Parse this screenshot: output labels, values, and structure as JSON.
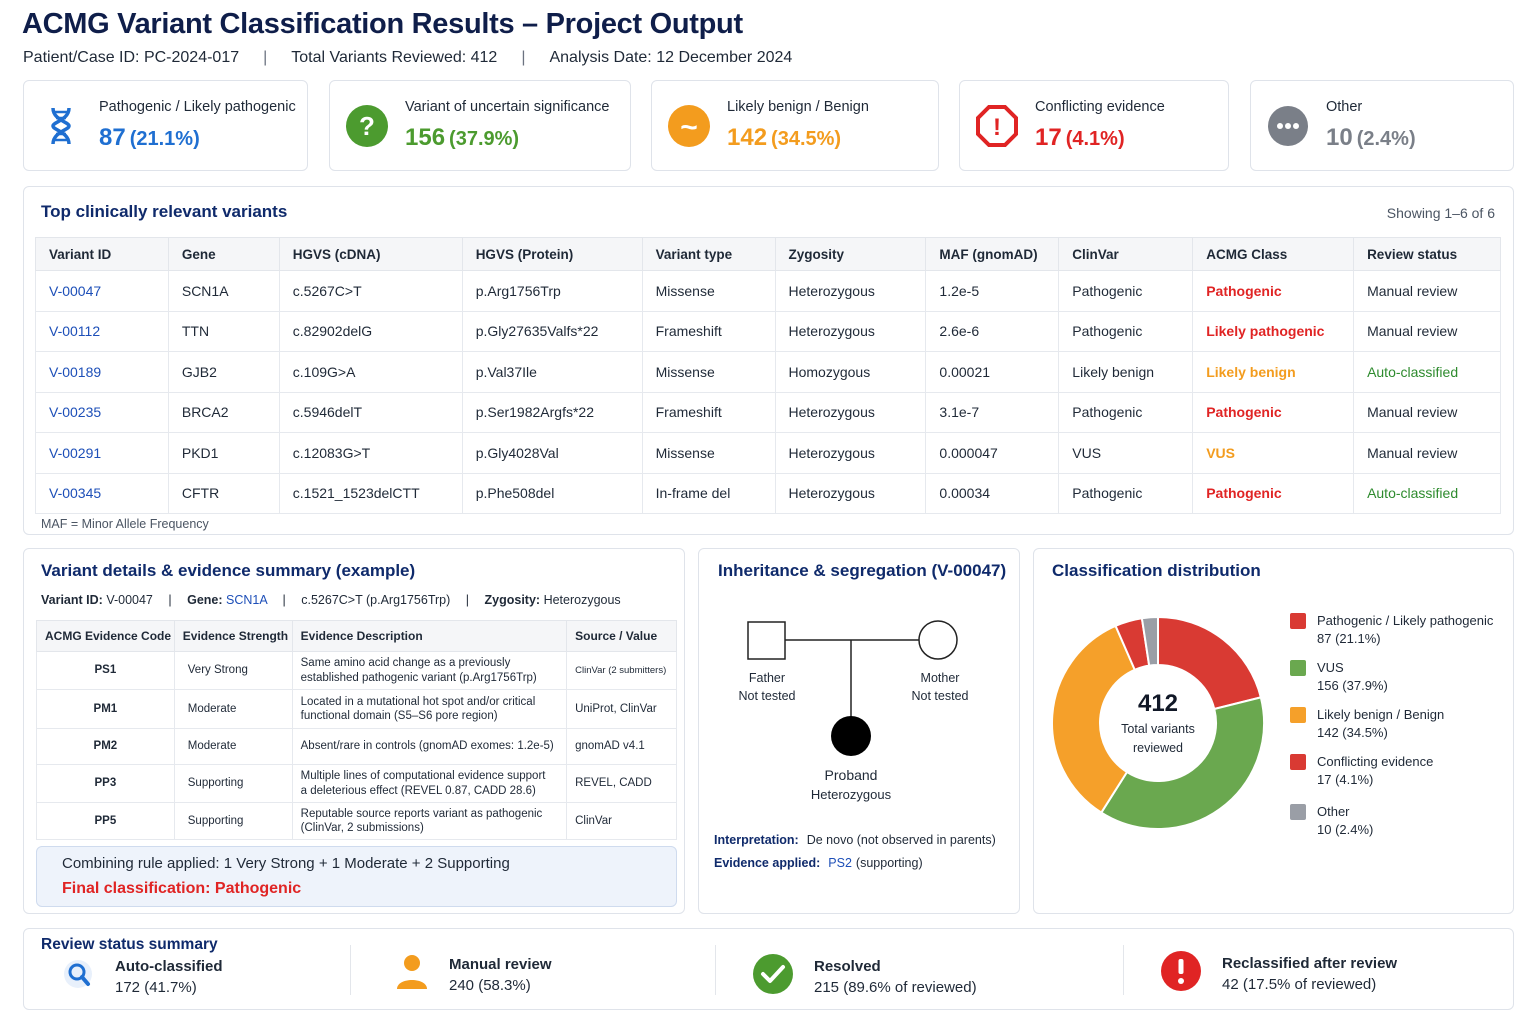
{
  "header": {
    "title": "ACMG Variant Classification Results – Project Output",
    "case_id": "Patient/Case ID: PC-2024-017",
    "total": "Total Variants Reviewed: 412",
    "date": "Analysis Date: 12 December 2024",
    "separator": "|"
  },
  "summary_cards": [
    {
      "label": "Pathogenic / Likely pathogenic",
      "count": "87",
      "pct": "(21.1%)",
      "color": "#1f6fd1",
      "icon": "dna-icon"
    },
    {
      "label": "Variant of uncertain significance",
      "count": "156",
      "pct": "(37.9%)",
      "color": "#4c9b2f",
      "icon": "question-icon",
      "glyph": "?"
    },
    {
      "label": "Likely benign / Benign",
      "count": "142",
      "pct": "(34.5%)",
      "color": "#f39c1e",
      "icon": "tilde-icon",
      "glyph": "~"
    },
    {
      "label": "Conflicting evidence",
      "count": "17",
      "pct": "(4.1%)",
      "color": "#e02424",
      "icon": "alert-octagon-icon",
      "glyph": "!"
    },
    {
      "label": "Other",
      "count": "10",
      "pct": "(2.4%)",
      "color": "#7a7f88",
      "icon": "more-icon",
      "glyph": "•••"
    }
  ],
  "top_variants": {
    "title": "Top clinically relevant variants",
    "showing": "Showing 1–6 of 6",
    "footnote": "MAF = Minor Allele Frequency",
    "columns": [
      "Variant ID",
      "Gene",
      "HGVS (cDNA)",
      "HGVS (Protein)",
      "Variant type",
      "Zygosity",
      "MAF (gnomAD)",
      "ClinVar",
      "ACMG Class",
      "Review status"
    ],
    "rows": [
      {
        "id": "V-00047",
        "gene": "SCN1A",
        "cdna": "c.5267C>T",
        "protein": "p.Arg1756Trp",
        "type": "Missense",
        "zyg": "Heterozygous",
        "maf": "1.2e-5",
        "clinvar": "Pathogenic",
        "acmg": "Pathogenic",
        "acmg_color": "#e02424",
        "status": "Manual review",
        "status_color": "#1f2937"
      },
      {
        "id": "V-00112",
        "gene": "TTN",
        "cdna": "c.82902delG",
        "protein": "p.Gly27635Valfs*22",
        "type": "Frameshift",
        "zyg": "Heterozygous",
        "maf": "2.6e-6",
        "clinvar": "Pathogenic",
        "acmg": "Likely pathogenic",
        "acmg_color": "#e02424",
        "status": "Manual review",
        "status_color": "#1f2937"
      },
      {
        "id": "V-00189",
        "gene": "GJB2",
        "cdna": "c.109G>A",
        "protein": "p.Val37Ile",
        "type": "Missense",
        "zyg": "Homozygous",
        "maf": "0.00021",
        "clinvar": "Likely benign",
        "acmg": "Likely benign",
        "acmg_color": "#f39c1e",
        "status": "Auto-classified",
        "status_color": "#2e8b2e"
      },
      {
        "id": "V-00235",
        "gene": "BRCA2",
        "cdna": "c.5946delT",
        "protein": "p.Ser1982Argfs*22",
        "type": "Frameshift",
        "zyg": "Heterozygous",
        "maf": "3.1e-7",
        "clinvar": "Pathogenic",
        "acmg": "Pathogenic",
        "acmg_color": "#e02424",
        "status": "Manual review",
        "status_color": "#1f2937"
      },
      {
        "id": "V-00291",
        "gene": "PKD1",
        "cdna": "c.12083G>T",
        "protein": "p.Gly4028Val",
        "type": "Missense",
        "zyg": "Heterozygous",
        "maf": "0.000047",
        "clinvar": "VUS",
        "acmg": "VUS",
        "acmg_color": "#f39c1e",
        "status": "Manual review",
        "status_color": "#1f2937"
      },
      {
        "id": "V-00345",
        "gene": "CFTR",
        "cdna": "c.1521_1523delCTT",
        "protein": "p.Phe508del",
        "type": "In-frame del",
        "zyg": "Heterozygous",
        "maf": "0.00034",
        "clinvar": "Pathogenic",
        "acmg": "Pathogenic",
        "acmg_color": "#e02424",
        "status": "Auto-classified",
        "status_color": "#2e8b2e"
      }
    ]
  },
  "evidence": {
    "title": "Variant details & evidence summary (example)",
    "variant_label": "Variant ID:",
    "variant_value": "V-00047",
    "gene_label": "Gene:",
    "gene_value": "SCN1A",
    "hgvs": "c.5267C>T (p.Arg1756Trp)",
    "zyg_label": "Zygosity:",
    "zyg_value": "Heterozygous",
    "separator": "|",
    "columns": [
      "ACMG Evidence Code",
      "Evidence Strength",
      "Evidence Description",
      "Source / Value"
    ],
    "rows": [
      {
        "code": "PS1",
        "strength": "Very Strong",
        "desc1": "Same amino acid change as a previously",
        "desc2": "established pathogenic variant (p.Arg1756Trp)",
        "source": "ClinVar (2 submitters)"
      },
      {
        "code": "PM1",
        "strength": "Moderate",
        "desc1": "Located in a mutational hot spot and/or critical",
        "desc2": "functional domain (S5–S6 pore region)",
        "source": "UniProt, ClinVar"
      },
      {
        "code": "PM2",
        "strength": "Moderate",
        "desc1": "Absent/rare in controls (gnomAD exomes: 1.2e-5)",
        "desc2": "",
        "source": "gnomAD v4.1"
      },
      {
        "code": "PP3",
        "strength": "Supporting",
        "desc1": "Multiple lines of computational evidence support",
        "desc2": "a deleterious effect (REVEL 0.87, CADD 28.6)",
        "source": "REVEL, CADD"
      },
      {
        "code": "PP5",
        "strength": "Supporting",
        "desc1": "Reputable source reports variant as pathogenic",
        "desc2": "(ClinVar, 2 submissions)",
        "source": "ClinVar"
      }
    ],
    "rule": "Combining rule applied: 1 Very Strong + 1 Moderate + 2 Supporting",
    "final": "Final classification: Pathogenic"
  },
  "inheritance": {
    "title": "Inheritance & segregation (V-00047)",
    "father": "Father",
    "father_status": "Not tested",
    "mother": "Mother",
    "mother_status": "Not tested",
    "proband": "Proband",
    "proband_status": "Heterozygous",
    "interp_label": "Interpretation:",
    "interp_value": "De novo (not observed in parents)",
    "evid_label": "Evidence applied:",
    "evid_code": "PS2",
    "evid_value": "(supporting)"
  },
  "distribution": {
    "title": "Classification distribution",
    "center_value": "412",
    "center_label1": "Total variants",
    "center_label2": "reviewed"
  },
  "chart_data": {
    "type": "pie",
    "categories": [
      "Pathogenic / Likely pathogenic",
      "VUS",
      "Likely benign / Benign",
      "Conflicting evidence",
      "Other"
    ],
    "values": [
      87,
      156,
      142,
      17,
      10
    ],
    "value_labels": [
      "87 (21.1%)",
      "156 (37.9%)",
      "142 (34.5%)",
      "17 (4.1%)",
      "10 (2.4%)"
    ],
    "colors": [
      "#d93a33",
      "#6aa84f",
      "#f5a02a",
      "#d93a33",
      "#9a9ea6"
    ],
    "legend": "right"
  },
  "review": {
    "title": "Review status summary",
    "items": [
      {
        "label": "Auto-classified",
        "value": "172 (41.7%)",
        "icon": "search-icon"
      },
      {
        "label": "Manual review",
        "value": "240 (58.3%)",
        "icon": "person-icon"
      },
      {
        "label": "Resolved",
        "value": "215 (89.6% of reviewed)",
        "icon": "check-circle-icon"
      },
      {
        "label": "Reclassified after review",
        "value": "42 (17.5% of reviewed)",
        "icon": "alert-circle-icon"
      }
    ]
  }
}
